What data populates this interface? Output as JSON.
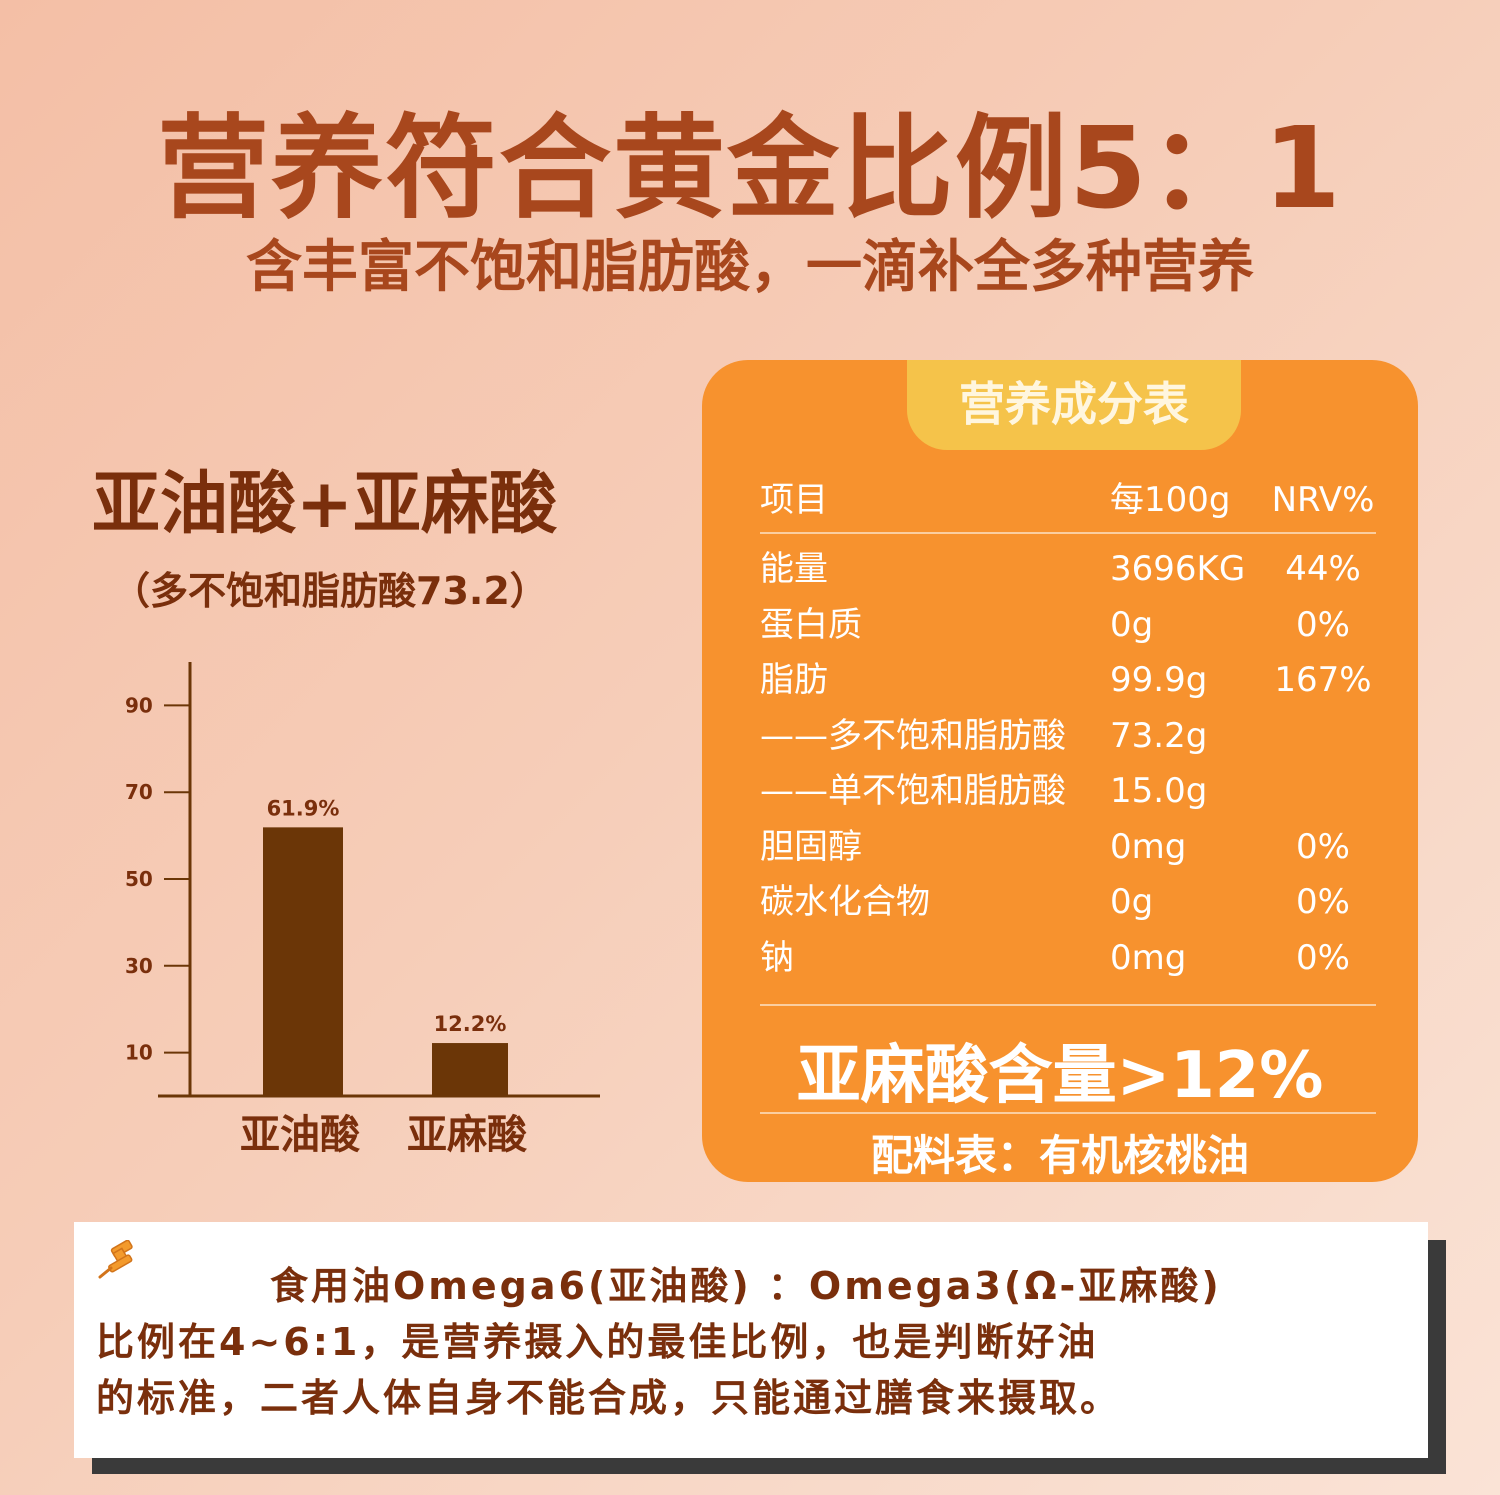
{
  "headline": "营养符合黄金比例5：1",
  "subheadline": "含丰富不饱和脂肪酸，一滴补全多种营养",
  "chart_title": "亚油酸+亚麻酸",
  "chart_subtitle": "（多不饱和脂肪酸73.2）",
  "chart_data": {
    "type": "bar",
    "categories": [
      "亚油酸",
      "亚麻酸"
    ],
    "values": [
      61.9,
      12.2
    ],
    "value_labels": [
      "61.9%",
      "12.2%"
    ],
    "yticks": [
      90,
      70,
      50,
      30,
      10
    ],
    "ylim": [
      0,
      100
    ],
    "grid": false,
    "bar_color": "#6b3607"
  },
  "nutrition": {
    "tab_title": "营养成分表",
    "headers": {
      "item": "项目",
      "per100g": "每100g",
      "nrv": "NRV%"
    },
    "rows": [
      {
        "name": "能量",
        "value": "3696KG",
        "nrv": "44%"
      },
      {
        "name": "蛋白质",
        "value": "0g",
        "nrv": "0%"
      },
      {
        "name": "脂肪",
        "value": "99.9g",
        "nrv": "167%"
      },
      {
        "name": "——多不饱和脂肪酸",
        "value": "73.2g",
        "nrv": ""
      },
      {
        "name": "——单不饱和脂肪酸",
        "value": "15.0g",
        "nrv": ""
      },
      {
        "name": "胆固醇",
        "value": "0mg",
        "nrv": "0%"
      },
      {
        "name": "碳水化合物",
        "value": "0g",
        "nrv": "0%"
      },
      {
        "name": "钠",
        "value": "0mg",
        "nrv": "0%"
      }
    ],
    "highlight": "亚麻酸含量>12%",
    "ingredients": "配料表：有机核桃油"
  },
  "note": {
    "icon": "pushpin-icon",
    "lines": [
      "食用油Omega6(亚油酸)  ：Omega3(Ω-亚麻酸)",
      "比例在4~6:1，是营养摄入的最佳比例，也是判断好油",
      "的标准，二者人体自身不能合成，只能通过膳食来摄取。"
    ]
  },
  "colors": {
    "headline": "#a8471d",
    "dark_brown": "#7a2f0c",
    "panel": "#f7922e",
    "panel_tab": "#f5c34a"
  }
}
